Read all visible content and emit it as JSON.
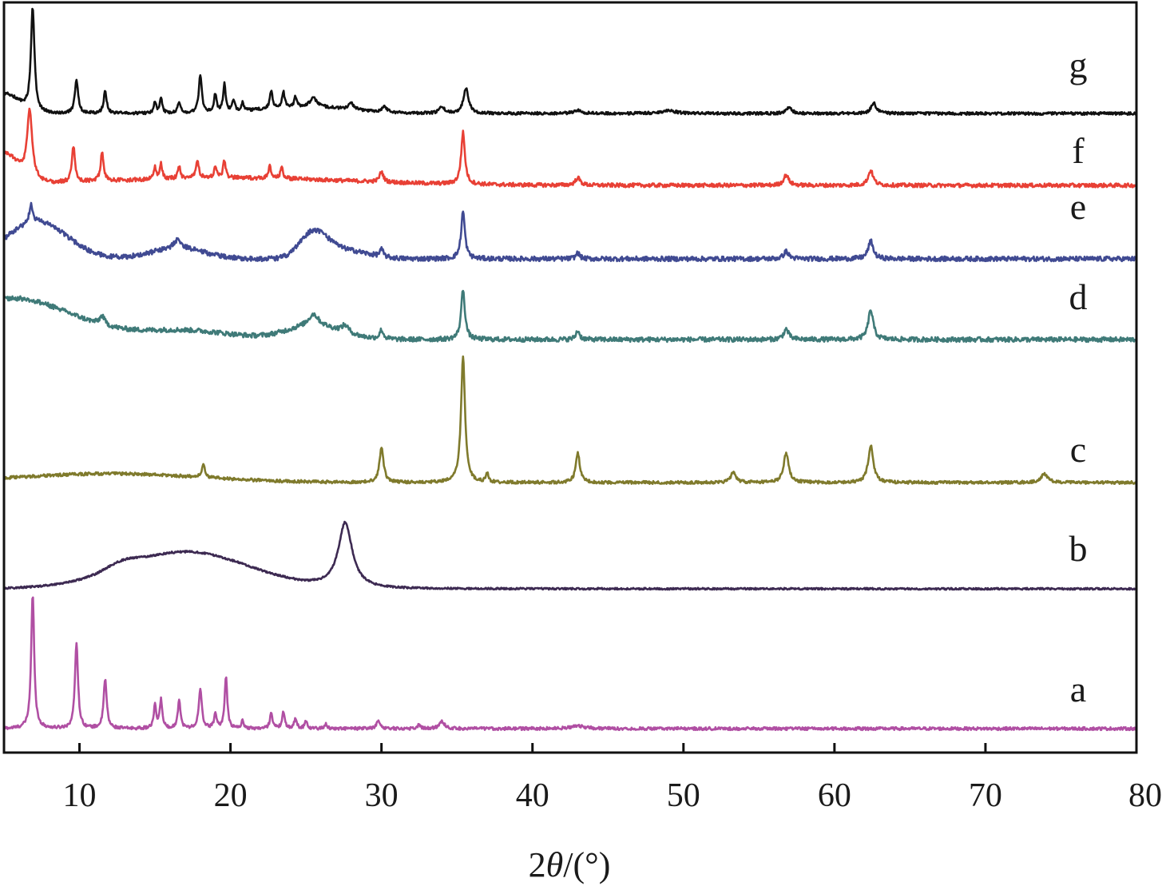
{
  "chart_data": {
    "type": "line",
    "xlabel_prefix": "2",
    "xlabel_symbol": "θ",
    "xlabel_suffix": "/(°)",
    "xlim": [
      5,
      80
    ],
    "xticks": [
      "10",
      "20",
      "30",
      "40",
      "50",
      "60",
      "70",
      "80"
    ],
    "y_axis_ticks_shown": false,
    "grid": false,
    "legend": "none (curve letters placed at right)",
    "stacked_offset": true,
    "series": [
      {
        "name": "a",
        "color": "#b04fa3",
        "baseline": 0,
        "noise": 1.0,
        "peaks": [
          [
            6.9,
            90,
            0.12
          ],
          [
            9.8,
            58,
            0.12
          ],
          [
            11.7,
            33,
            0.12
          ],
          [
            15.0,
            15,
            0.1
          ],
          [
            15.4,
            19,
            0.1
          ],
          [
            16.6,
            20,
            0.1
          ],
          [
            18.0,
            26,
            0.12
          ],
          [
            19.0,
            10,
            0.1
          ],
          [
            19.7,
            35,
            0.1
          ],
          [
            20.8,
            5,
            0.1
          ],
          [
            22.7,
            11,
            0.1
          ],
          [
            23.5,
            11,
            0.1
          ],
          [
            24.3,
            7,
            0.1
          ],
          [
            25.0,
            5,
            0.1
          ],
          [
            26.3,
            3,
            0.1
          ],
          [
            29.8,
            5,
            0.15
          ],
          [
            32.5,
            3,
            0.1
          ],
          [
            34.0,
            5,
            0.2
          ],
          [
            43.0,
            2,
            0.5
          ]
        ],
        "humps": []
      },
      {
        "name": "b",
        "color": "#3d2a52",
        "baseline": 0,
        "noise": 0.6,
        "peaks": [
          [
            27.6,
            44,
            0.55
          ]
        ],
        "humps": [
          [
            17.0,
            25,
            4.2
          ],
          [
            12.8,
            4,
            1.0
          ]
        ]
      },
      {
        "name": "c",
        "color": "#7f7a2c",
        "baseline": 0,
        "noise": 1.0,
        "peaks": [
          [
            18.2,
            9,
            0.12
          ],
          [
            30.0,
            24,
            0.16
          ],
          [
            35.4,
            85,
            0.16
          ],
          [
            37.0,
            6,
            0.1
          ],
          [
            43.0,
            20,
            0.16
          ],
          [
            53.3,
            7,
            0.2
          ],
          [
            56.8,
            20,
            0.2
          ],
          [
            62.4,
            25,
            0.2
          ],
          [
            73.9,
            6,
            0.25
          ]
        ],
        "humps": [
          [
            12.0,
            6,
            6.0
          ]
        ]
      },
      {
        "name": "d",
        "color": "#3f7a78",
        "baseline": 0,
        "noise": 1.6,
        "peaks": [
          [
            11.5,
            6,
            0.2
          ],
          [
            25.5,
            8,
            0.4
          ],
          [
            27.6,
            5,
            0.3
          ],
          [
            30.0,
            6,
            0.15
          ],
          [
            35.4,
            34,
            0.15
          ],
          [
            43.0,
            6,
            0.15
          ],
          [
            56.8,
            7,
            0.2
          ],
          [
            62.4,
            20,
            0.2
          ]
        ],
        "humps": [
          [
            5.5,
            28,
            4.0
          ],
          [
            25.5,
            9,
            1.8
          ],
          [
            17.0,
            6,
            3.0
          ]
        ]
      },
      {
        "name": "e",
        "color": "#404a92",
        "baseline": 0,
        "noise": 1.6,
        "peaks": [
          [
            6.8,
            12,
            0.15
          ],
          [
            16.5,
            6,
            0.3
          ],
          [
            30.0,
            5,
            0.15
          ],
          [
            35.4,
            32,
            0.15
          ],
          [
            43.0,
            4,
            0.15
          ],
          [
            56.8,
            5,
            0.2
          ],
          [
            62.4,
            12,
            0.2
          ]
        ],
        "humps": [
          [
            7.2,
            25,
            2.0
          ],
          [
            25.5,
            17,
            0.9
          ],
          [
            16.5,
            7,
            1.8
          ],
          [
            27.5,
            6,
            1.5
          ]
        ]
      },
      {
        "name": "f",
        "color": "#e84035",
        "baseline": 0,
        "noise": 1.3,
        "peaks": [
          [
            6.7,
            45,
            0.2
          ],
          [
            9.6,
            24,
            0.12
          ],
          [
            11.5,
            20,
            0.12
          ],
          [
            15.0,
            8,
            0.1
          ],
          [
            15.4,
            10,
            0.1
          ],
          [
            16.6,
            8,
            0.1
          ],
          [
            17.8,
            12,
            0.12
          ],
          [
            19.0,
            8,
            0.1
          ],
          [
            19.6,
            12,
            0.1
          ],
          [
            22.6,
            8,
            0.1
          ],
          [
            23.4,
            8,
            0.1
          ],
          [
            30.0,
            7,
            0.15
          ],
          [
            35.4,
            35,
            0.15
          ],
          [
            43.0,
            5,
            0.2
          ],
          [
            56.8,
            7,
            0.2
          ],
          [
            62.4,
            10,
            0.2
          ]
        ],
        "humps": [
          [
            5.0,
            20,
            1.0
          ],
          [
            20.0,
            5,
            8.0
          ]
        ]
      },
      {
        "name": "g",
        "color": "#111111",
        "baseline": 0,
        "noise": 1.3,
        "peaks": [
          [
            6.9,
            95,
            0.14
          ],
          [
            9.8,
            30,
            0.13
          ],
          [
            11.7,
            20,
            0.12
          ],
          [
            15.0,
            10,
            0.1
          ],
          [
            15.4,
            13,
            0.1
          ],
          [
            16.6,
            11,
            0.1
          ],
          [
            18.0,
            35,
            0.12
          ],
          [
            19.0,
            17,
            0.1
          ],
          [
            19.6,
            26,
            0.1
          ],
          [
            20.2,
            10,
            0.1
          ],
          [
            20.8,
            8,
            0.1
          ],
          [
            22.7,
            17,
            0.1
          ],
          [
            23.5,
            15,
            0.1
          ],
          [
            24.3,
            9,
            0.1
          ],
          [
            25.5,
            8,
            0.3
          ],
          [
            28.0,
            6,
            0.2
          ],
          [
            30.2,
            5,
            0.2
          ],
          [
            34.0,
            6,
            0.2
          ],
          [
            35.6,
            24,
            0.2
          ],
          [
            43.0,
            3,
            0.3
          ],
          [
            49.0,
            3,
            0.5
          ],
          [
            57.0,
            6,
            0.2
          ],
          [
            62.6,
            10,
            0.2
          ]
        ],
        "humps": [
          [
            5.0,
            18,
            1.0
          ],
          [
            25.0,
            6,
            3.0
          ]
        ]
      }
    ]
  }
}
